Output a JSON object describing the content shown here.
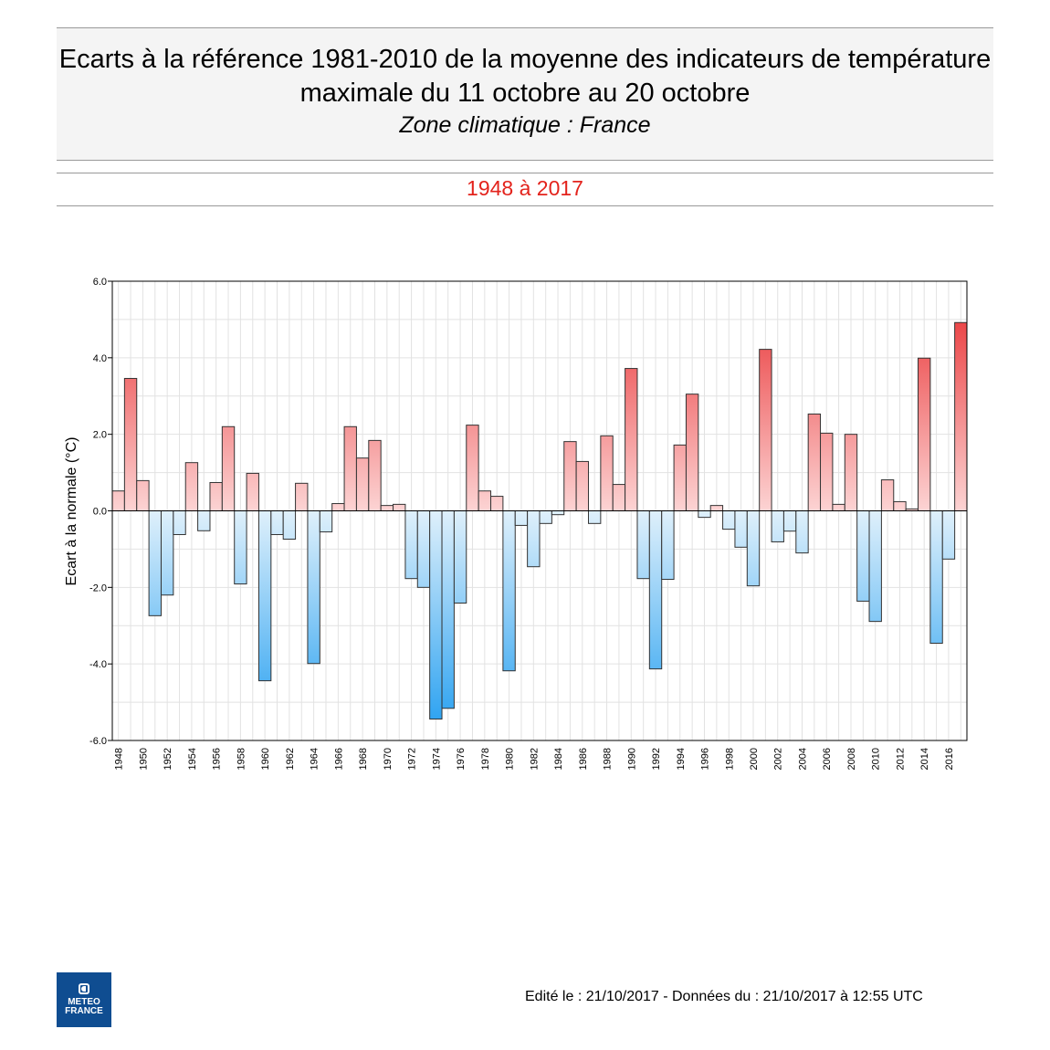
{
  "header": {
    "title": "Ecarts à la référence 1981-2010 de la moyenne des indicateurs de température maximale du 11 octobre au 20 octobre",
    "subtitle": "Zone climatique : France",
    "period": "1948 à 2017"
  },
  "footer": {
    "text": "Edité le : 21/10/2017 - Données du : 21/10/2017 à 12:55 UTC",
    "logo_text": "METEO FRANCE"
  },
  "colors": {
    "positive_max": "#e8292b",
    "positive_min": "#fcd4d4",
    "negative_min": "#dff0fb",
    "negative_max": "#1e9cf0",
    "title_period": "#e3231c"
  },
  "chart_data": {
    "type": "bar",
    "title": "",
    "xlabel": "",
    "ylabel": "Ecart à la normale (°C)",
    "ylim": [
      -6,
      6
    ],
    "yticks": [
      "6.0",
      "4.0",
      "2.0",
      "0.0",
      "-2.0",
      "-4.0",
      "-6.0"
    ],
    "grid": true,
    "categories": [
      1948,
      1949,
      1950,
      1951,
      1952,
      1953,
      1954,
      1955,
      1956,
      1957,
      1958,
      1959,
      1960,
      1961,
      1962,
      1963,
      1964,
      1965,
      1966,
      1967,
      1968,
      1969,
      1970,
      1971,
      1972,
      1973,
      1974,
      1975,
      1976,
      1977,
      1978,
      1979,
      1980,
      1981,
      1982,
      1983,
      1984,
      1985,
      1986,
      1987,
      1988,
      1989,
      1990,
      1991,
      1992,
      1993,
      1994,
      1995,
      1996,
      1997,
      1998,
      1999,
      2000,
      2001,
      2002,
      2003,
      2004,
      2005,
      2006,
      2007,
      2008,
      2009,
      2010,
      2011,
      2012,
      2013,
      2014,
      2015,
      2016,
      2017
    ],
    "values": [
      0.52,
      3.46,
      0.79,
      -2.74,
      -2.2,
      -0.62,
      1.26,
      -0.52,
      0.74,
      2.2,
      -1.91,
      0.98,
      -4.44,
      -0.62,
      -0.74,
      0.72,
      -3.99,
      -0.55,
      0.19,
      2.2,
      1.38,
      1.84,
      0.14,
      0.17,
      -1.77,
      -2.0,
      -5.44,
      -5.16,
      -2.41,
      2.24,
      0.52,
      0.38,
      -4.18,
      -0.38,
      -1.46,
      -0.33,
      -0.1,
      1.81,
      1.29,
      -0.33,
      1.96,
      0.69,
      3.72,
      -1.77,
      -4.13,
      -1.79,
      1.72,
      3.05,
      -0.17,
      0.14,
      -0.48,
      -0.95,
      -1.96,
      4.22,
      -0.81,
      -0.53,
      -1.1,
      2.53,
      2.03,
      0.17,
      2.0,
      -2.36,
      -2.89,
      0.81,
      0.24,
      0.05,
      3.99,
      -3.46,
      -1.26,
      4.92
    ]
  }
}
